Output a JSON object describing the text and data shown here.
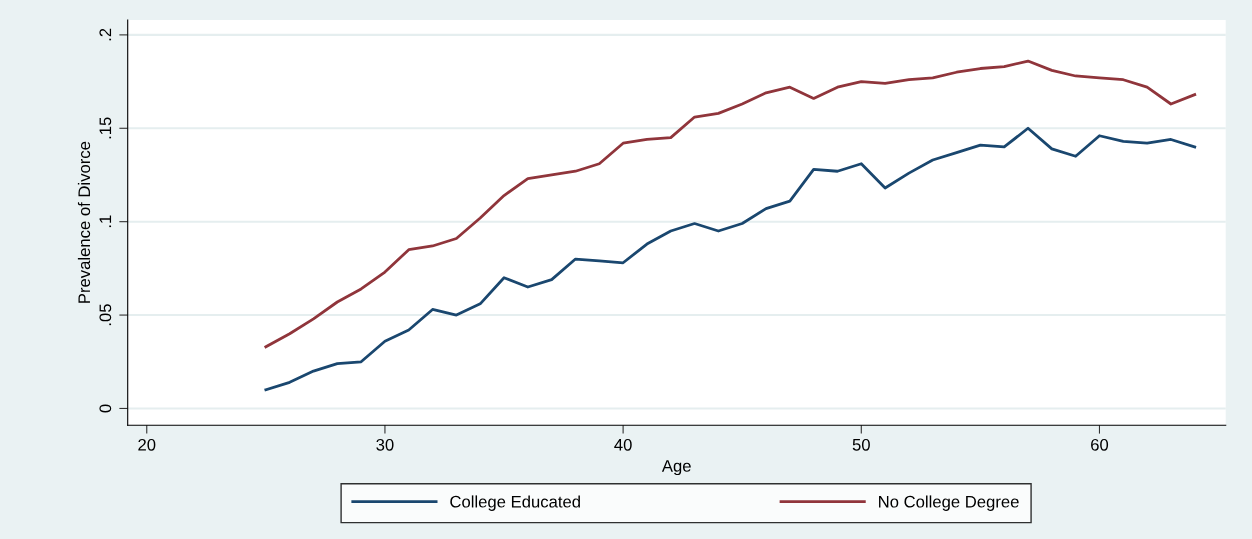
{
  "chart_data": {
    "type": "line",
    "xlabel": "Age",
    "ylabel": "Prevalence of Divorce",
    "x": [
      25,
      26,
      27,
      28,
      29,
      30,
      31,
      32,
      33,
      34,
      35,
      36,
      37,
      38,
      39,
      40,
      41,
      42,
      43,
      44,
      45,
      46,
      47,
      48,
      49,
      50,
      51,
      52,
      53,
      54,
      55,
      56,
      57,
      58,
      59,
      60,
      61,
      62,
      63,
      64
    ],
    "series": [
      {
        "name": "College Educated",
        "color": "#1a476f",
        "values": [
          0.01,
          0.014,
          0.02,
          0.024,
          0.025,
          0.036,
          0.042,
          0.053,
          0.05,
          0.056,
          0.07,
          0.065,
          0.069,
          0.08,
          0.079,
          0.078,
          0.088,
          0.095,
          0.099,
          0.095,
          0.099,
          0.107,
          0.111,
          0.128,
          0.127,
          0.131,
          0.118,
          0.126,
          0.133,
          0.137,
          0.141,
          0.14,
          0.15,
          0.139,
          0.135,
          0.146,
          0.143,
          0.142,
          0.144,
          0.14
        ]
      },
      {
        "name": "No College Degree",
        "color": "#90353b",
        "values": [
          0.033,
          0.04,
          0.048,
          0.057,
          0.064,
          0.073,
          0.085,
          0.087,
          0.091,
          0.102,
          0.114,
          0.123,
          0.125,
          0.127,
          0.131,
          0.142,
          0.144,
          0.145,
          0.156,
          0.158,
          0.163,
          0.169,
          0.172,
          0.166,
          0.172,
          0.175,
          0.174,
          0.176,
          0.177,
          0.18,
          0.182,
          0.183,
          0.186,
          0.181,
          0.178,
          0.177,
          0.176,
          0.172,
          0.163,
          0.168
        ]
      }
    ],
    "xlim": [
      19.2,
      65.3
    ],
    "ylim": [
      -0.009,
      0.208
    ],
    "xticks": [
      20,
      30,
      40,
      50,
      60
    ],
    "yticks": [
      {
        "value": 0,
        "label": "0"
      },
      {
        "value": 0.05,
        "label": ".05"
      },
      {
        "value": 0.1,
        "label": ".1"
      },
      {
        "value": 0.15,
        "label": ".15"
      },
      {
        "value": 0.2,
        "label": ".2"
      }
    ],
    "grid": "y",
    "legend": "bottom",
    "marker": "none",
    "line_style": "solid"
  }
}
